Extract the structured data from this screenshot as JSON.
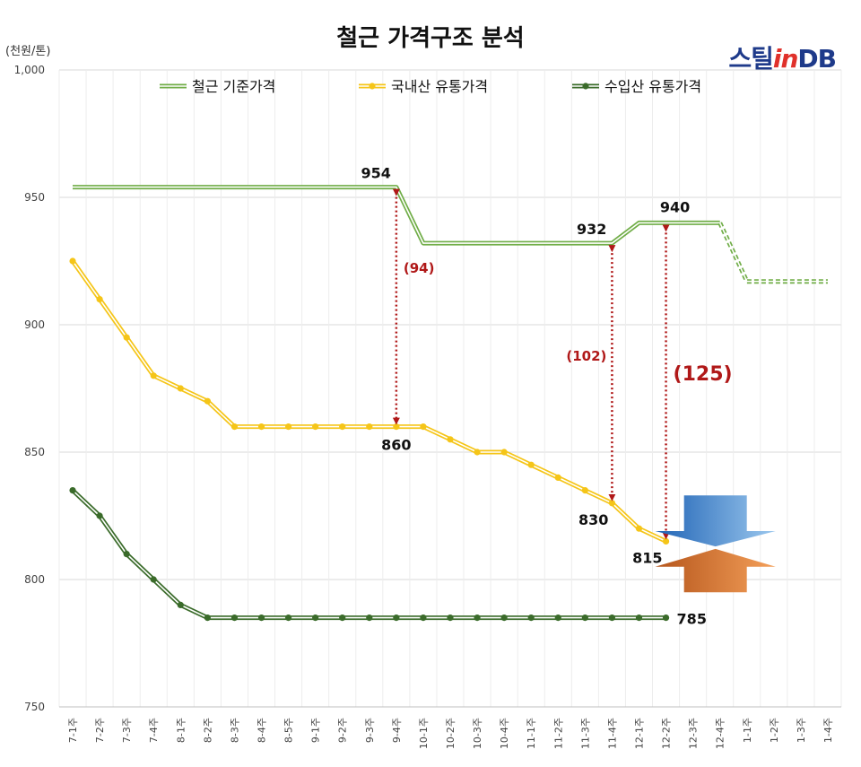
{
  "chart_data": {
    "type": "line",
    "title": "철근 가격구조 분석",
    "unit_label": "(천원/톤)",
    "logo": {
      "brand": "스틸",
      "in": "in",
      "db": "DB"
    },
    "categories": [
      "7-1주",
      "7-2주",
      "7-3주",
      "7-4주",
      "8-1주",
      "8-2주",
      "8-3주",
      "8-4주",
      "8-5주",
      "9-1주",
      "9-2주",
      "9-3주",
      "9-4주",
      "10-1주",
      "10-2주",
      "10-3주",
      "10-4주",
      "11-1주",
      "11-2주",
      "11-3주",
      "11-4주",
      "12-1주",
      "12-2주",
      "12-3주",
      "12-4주",
      "1-1주",
      "1-2주",
      "1-3주",
      "1-4주"
    ],
    "ylim": [
      750,
      1000
    ],
    "yticks": [
      "750",
      "800",
      "850",
      "900",
      "950",
      "1,000"
    ],
    "ytick_values": [
      750,
      800,
      850,
      900,
      950,
      1000
    ],
    "grid": true,
    "legend_position": "top",
    "series": [
      {
        "name": "철근 기준가격",
        "color": "#70ad47",
        "style": "double-line",
        "values": [
          954,
          954,
          954,
          954,
          954,
          954,
          954,
          954,
          954,
          954,
          954,
          954,
          954,
          932,
          932,
          932,
          932,
          932,
          932,
          932,
          932,
          940,
          940,
          940,
          940,
          null,
          null,
          null,
          null
        ],
        "forecast_values": [
          null,
          null,
          null,
          null,
          null,
          null,
          null,
          null,
          null,
          null,
          null,
          null,
          null,
          null,
          null,
          null,
          null,
          null,
          null,
          null,
          null,
          null,
          null,
          null,
          940,
          917,
          917,
          917,
          917
        ]
      },
      {
        "name": "국내산 유통가격",
        "color": "#f5c518",
        "style": "double-line-markers",
        "values": [
          925,
          910,
          895,
          880,
          875,
          870,
          860,
          860,
          860,
          860,
          860,
          860,
          860,
          860,
          855,
          850,
          850,
          845,
          840,
          835,
          830,
          820,
          815,
          null,
          null,
          null,
          null,
          null,
          null
        ]
      },
      {
        "name": "수입산 유통가격",
        "color": "#3a6b2a",
        "style": "double-line-markers",
        "values": [
          835,
          825,
          810,
          800,
          790,
          785,
          785,
          785,
          785,
          785,
          785,
          785,
          785,
          785,
          785,
          785,
          785,
          785,
          785,
          785,
          785,
          785,
          785,
          null,
          null,
          null,
          null,
          null,
          null
        ]
      }
    ],
    "value_labels": [
      {
        "text": "954",
        "cat": 12,
        "y": 954,
        "pos": "above-left"
      },
      {
        "text": "932",
        "cat": 20,
        "y": 932,
        "pos": "above-left"
      },
      {
        "text": "940",
        "cat": 22,
        "y": 940,
        "pos": "above-right"
      },
      {
        "text": "860",
        "cat": 12,
        "y": 860,
        "pos": "below"
      },
      {
        "text": "830",
        "cat": 20,
        "y": 830,
        "pos": "below-left"
      },
      {
        "text": "815",
        "cat": 22,
        "y": 815,
        "pos": "below-left"
      },
      {
        "text": "785",
        "cat": 22,
        "y": 785,
        "pos": "right"
      }
    ],
    "gap_annotations": [
      {
        "text": "(94)",
        "cat": 12,
        "from": 954,
        "to": 860,
        "size": "normal"
      },
      {
        "text": "(102)",
        "cat": 20,
        "from": 932,
        "to": 830,
        "size": "normal"
      },
      {
        "text": "(125)",
        "cat": 22,
        "from": 940,
        "to": 815,
        "size": "large"
      }
    ],
    "squeeze_arrows": {
      "down_color": "#2f7fc9",
      "up_color": "#e06b1e"
    }
  }
}
